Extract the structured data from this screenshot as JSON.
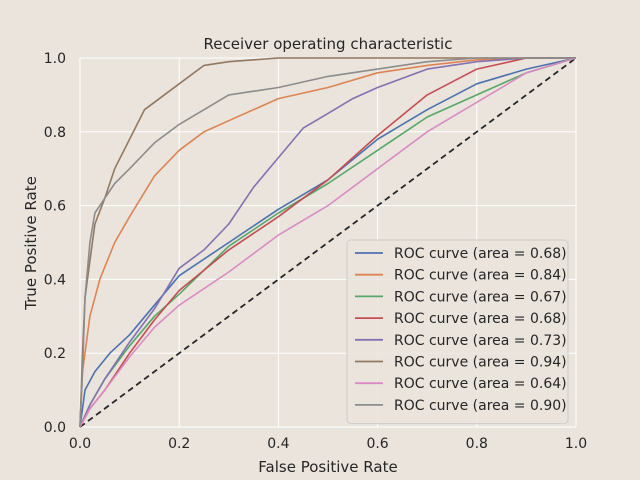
{
  "chart_data": {
    "type": "line",
    "title": "Receiver operating characteristic",
    "xlabel": "False Positive Rate",
    "ylabel": "True Positive Rate",
    "xlim": [
      0.0,
      1.0
    ],
    "ylim": [
      0.0,
      1.0
    ],
    "xticks": [
      "0.0",
      "0.2",
      "0.4",
      "0.6",
      "0.8",
      "1.0"
    ],
    "yticks": [
      "0.0",
      "0.2",
      "0.4",
      "0.6",
      "0.8",
      "1.0"
    ],
    "grid": true,
    "legend_position": "lower right",
    "baseline": {
      "x": [
        0,
        1
      ],
      "y": [
        0,
        1
      ],
      "style": "dashed",
      "color": "#262626"
    },
    "series": [
      {
        "name": "ROC curve (area = 0.68)",
        "color": "#4c72b0",
        "x": [
          0,
          0.01,
          0.03,
          0.06,
          0.1,
          0.15,
          0.2,
          0.3,
          0.4,
          0.5,
          0.6,
          0.7,
          0.8,
          0.9,
          1.0
        ],
        "y": [
          0,
          0.1,
          0.15,
          0.2,
          0.25,
          0.33,
          0.41,
          0.5,
          0.59,
          0.67,
          0.78,
          0.86,
          0.93,
          0.97,
          1.0
        ]
      },
      {
        "name": "ROC curve (area = 0.84)",
        "color": "#dd8452",
        "x": [
          0,
          0.005,
          0.02,
          0.04,
          0.07,
          0.1,
          0.15,
          0.2,
          0.25,
          0.3,
          0.4,
          0.5,
          0.6,
          0.7,
          0.8,
          0.9,
          1.0
        ],
        "y": [
          0,
          0.15,
          0.3,
          0.4,
          0.5,
          0.57,
          0.68,
          0.75,
          0.8,
          0.83,
          0.89,
          0.92,
          0.96,
          0.98,
          0.995,
          1.0,
          1.0
        ]
      },
      {
        "name": "ROC curve (area = 0.67)",
        "color": "#55a868",
        "x": [
          0,
          0.02,
          0.05,
          0.1,
          0.15,
          0.2,
          0.3,
          0.4,
          0.5,
          0.6,
          0.7,
          0.8,
          0.9,
          1.0
        ],
        "y": [
          0,
          0.06,
          0.13,
          0.22,
          0.3,
          0.36,
          0.49,
          0.58,
          0.66,
          0.75,
          0.84,
          0.9,
          0.96,
          1.0
        ]
      },
      {
        "name": "ROC curve (area = 0.68)",
        "color": "#c44e52",
        "x": [
          0,
          0.02,
          0.05,
          0.1,
          0.15,
          0.2,
          0.3,
          0.4,
          0.5,
          0.6,
          0.7,
          0.8,
          0.9,
          1.0
        ],
        "y": [
          0,
          0.05,
          0.1,
          0.2,
          0.29,
          0.37,
          0.48,
          0.57,
          0.67,
          0.79,
          0.9,
          0.97,
          1.0,
          1.0
        ]
      },
      {
        "name": "ROC curve (area = 0.73)",
        "color": "#8172b3",
        "x": [
          0,
          0.02,
          0.05,
          0.1,
          0.15,
          0.2,
          0.25,
          0.3,
          0.35,
          0.4,
          0.45,
          0.5,
          0.55,
          0.6,
          0.7,
          0.8,
          0.9,
          1.0
        ],
        "y": [
          0,
          0.06,
          0.13,
          0.23,
          0.32,
          0.43,
          0.48,
          0.55,
          0.65,
          0.73,
          0.81,
          0.85,
          0.89,
          0.92,
          0.97,
          0.99,
          1.0,
          1.0
        ]
      },
      {
        "name": "ROC curve (area = 0.94)",
        "color": "#937860",
        "x": [
          0,
          0.005,
          0.01,
          0.02,
          0.03,
          0.05,
          0.07,
          0.1,
          0.13,
          0.15,
          0.2,
          0.25,
          0.3,
          0.35,
          0.4,
          0.6,
          1.0
        ],
        "y": [
          0,
          0.2,
          0.35,
          0.45,
          0.55,
          0.62,
          0.7,
          0.78,
          0.86,
          0.88,
          0.93,
          0.98,
          0.99,
          0.995,
          1.0,
          1.0,
          1.0
        ]
      },
      {
        "name": "ROC curve (area = 0.64)",
        "color": "#da8bc3",
        "x": [
          0,
          0.02,
          0.05,
          0.1,
          0.15,
          0.2,
          0.3,
          0.4,
          0.5,
          0.6,
          0.7,
          0.8,
          0.9,
          1.0
        ],
        "y": [
          0,
          0.05,
          0.1,
          0.19,
          0.27,
          0.33,
          0.42,
          0.52,
          0.6,
          0.7,
          0.8,
          0.88,
          0.96,
          1.0
        ]
      },
      {
        "name": "ROC curve (area = 0.90)",
        "color": "#8c8c8c",
        "x": [
          0,
          0.005,
          0.01,
          0.02,
          0.03,
          0.05,
          0.07,
          0.1,
          0.15,
          0.2,
          0.25,
          0.3,
          0.35,
          0.4,
          0.5,
          0.6,
          0.7,
          0.8,
          1.0
        ],
        "y": [
          0,
          0.15,
          0.35,
          0.5,
          0.58,
          0.62,
          0.66,
          0.7,
          0.77,
          0.82,
          0.86,
          0.9,
          0.91,
          0.92,
          0.95,
          0.97,
          0.99,
          1.0,
          1.0
        ]
      }
    ]
  }
}
